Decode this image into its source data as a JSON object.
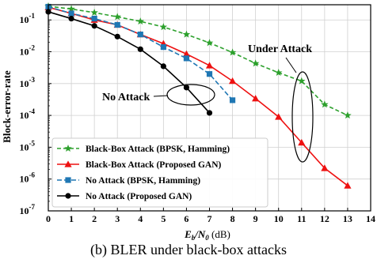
{
  "caption": "(b) BLER under black-box attacks",
  "chart_data": {
    "type": "line",
    "xlabel_main": "E",
    "xlabel_sub": "b",
    "xlabel_mid": "/N",
    "xlabel_sub2": "0",
    "xlabel_unit": " (dB)",
    "ylabel": "Block-error-rate",
    "xlim": [
      0,
      14
    ],
    "ylim": [
      1e-07,
      0.3
    ],
    "yscale": "log",
    "grid": true,
    "legend_position": "bottom-left",
    "x_ticks": [
      "0",
      "1",
      "2",
      "3",
      "4",
      "5",
      "6",
      "7",
      "8",
      "9",
      "10",
      "11",
      "12",
      "13",
      "14"
    ],
    "y_ticks": [
      {
        "value": 1e-07,
        "base": "10",
        "exp": "-7"
      },
      {
        "value": 1e-06,
        "base": "10",
        "exp": "-6"
      },
      {
        "value": 1e-05,
        "base": "10",
        "exp": "-5"
      },
      {
        "value": 0.0001,
        "base": "10",
        "exp": "-4"
      },
      {
        "value": 0.001,
        "base": "10",
        "exp": "-3"
      },
      {
        "value": 0.01,
        "base": "10",
        "exp": "-2"
      },
      {
        "value": 0.1,
        "base": "10",
        "exp": "-1"
      }
    ],
    "series": [
      {
        "name": "Black-Box Attack (BPSK, Hamming)",
        "color": "#2ca02c",
        "dash": "5,3",
        "marker": "star",
        "x": [
          0,
          1,
          2,
          3,
          4,
          5,
          6,
          7,
          8,
          9,
          10,
          11,
          12,
          13
        ],
        "y": [
          0.27,
          0.22,
          0.17,
          0.125,
          0.09,
          0.06,
          0.035,
          0.019,
          0.0095,
          0.0043,
          0.0022,
          0.0012,
          0.00022,
          0.0001
        ]
      },
      {
        "name": "Black-Box Attack (Proposed GAN)",
        "color": "#ee1111",
        "dash": "",
        "marker": "triangle",
        "x": [
          0,
          1,
          2,
          3,
          4,
          5,
          6,
          7,
          8,
          9,
          10,
          11,
          12,
          13
        ],
        "y": [
          0.25,
          0.16,
          0.1,
          0.07,
          0.035,
          0.018,
          0.0085,
          0.0037,
          0.0012,
          0.00034,
          9e-05,
          1.4e-05,
          2.2e-06,
          6.2e-07
        ]
      },
      {
        "name": "No Attack (BPSK, Hamming)",
        "color": "#1f77b4",
        "dash": "6,3",
        "marker": "square",
        "x": [
          0,
          1,
          2,
          3,
          4,
          5,
          6,
          7,
          8
        ],
        "y": [
          0.26,
          0.16,
          0.11,
          0.07,
          0.035,
          0.014,
          0.0062,
          0.002,
          0.0003
        ]
      },
      {
        "name": "No Attack (Proposed GAN)",
        "color": "#000000",
        "dash": "",
        "marker": "circle",
        "x": [
          0,
          1,
          2,
          3,
          4,
          5,
          6,
          7
        ],
        "y": [
          0.18,
          0.11,
          0.065,
          0.03,
          0.012,
          0.0035,
          0.00075,
          0.00012
        ]
      }
    ],
    "annotations": [
      {
        "text": "Under Attack"
      },
      {
        "text": "No Attack"
      }
    ]
  }
}
